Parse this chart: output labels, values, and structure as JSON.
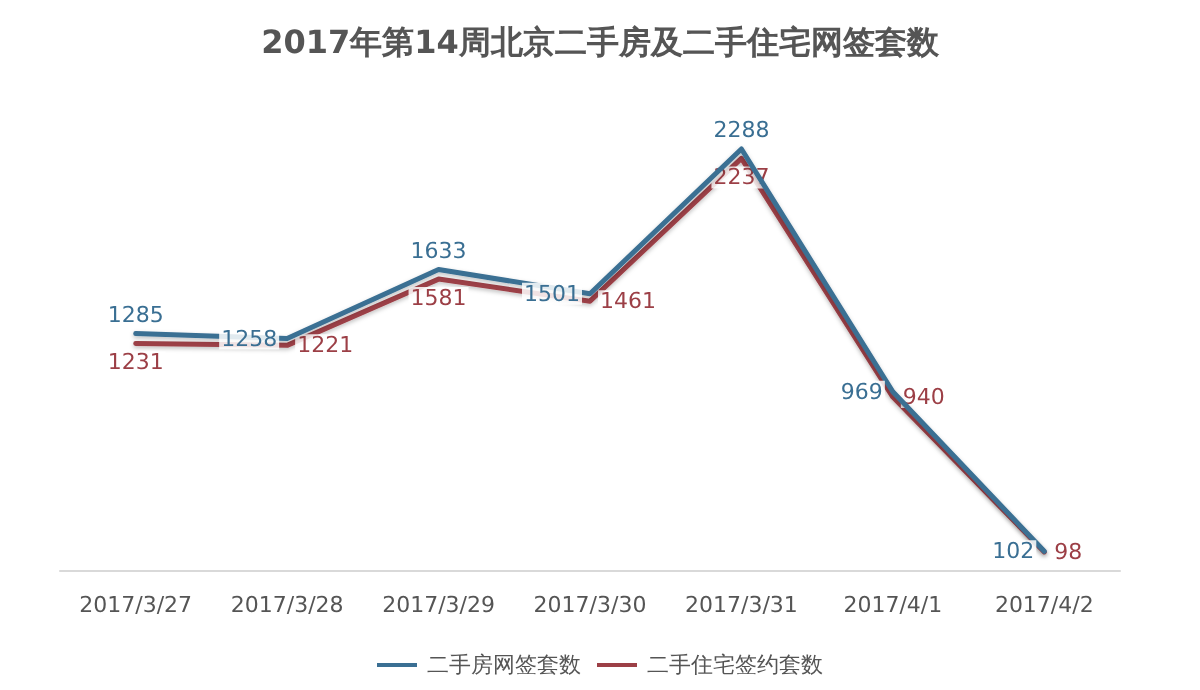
{
  "chart_data": {
    "type": "line",
    "title": "2017年第14周北京二手房及二手住宅网签套数",
    "categories": [
      "2017/3/27",
      "2017/3/28",
      "2017/3/29",
      "2017/3/30",
      "2017/3/31",
      "2017/4/1",
      "2017/4/2"
    ],
    "series": [
      {
        "name": "二手房网签套数",
        "color": "#3a6f93",
        "values": [
          1285,
          1258,
          1633,
          1501,
          2288,
          969,
          102
        ]
      },
      {
        "name": "二手住宅签约套数",
        "color": "#9c3f46",
        "values": [
          1231,
          1221,
          1581,
          1461,
          2237,
          940,
          98
        ]
      }
    ],
    "data_labels": true,
    "legend": "bottom",
    "marker": "none",
    "line_style": "solid"
  }
}
